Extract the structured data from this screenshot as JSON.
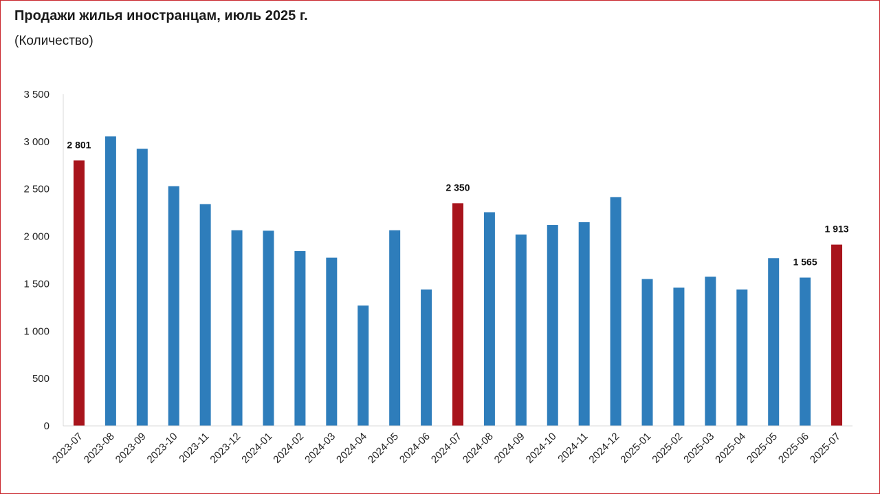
{
  "header": {
    "title": "Продажи жилья иностранцам, июль 2025 г.",
    "subtitle": "(Количество)"
  },
  "colors": {
    "bar": "#2e7dbb",
    "highlight": "#a8141c",
    "frame": "#c9252c",
    "axis": "#d9d9d9"
  },
  "chart_data": {
    "type": "bar",
    "title": "Продажи жилья иностранцам, июль 2025 г.",
    "subtitle": "(Количество)",
    "xlabel": "",
    "ylabel": "",
    "ylim": [
      0,
      3500
    ],
    "yticks": [
      0,
      500,
      1000,
      1500,
      2000,
      2500,
      3000,
      3500
    ],
    "ytick_labels": [
      "0",
      "500",
      "1 000",
      "1 500",
      "2 000",
      "2 500",
      "3 000",
      "3 500"
    ],
    "grid": false,
    "legend": "none",
    "categories": [
      "2023-07",
      "2023-08",
      "2023-09",
      "2023-10",
      "2023-11",
      "2023-12",
      "2024-01",
      "2024-02",
      "2024-03",
      "2024-04",
      "2024-05",
      "2024-06",
      "2024-07",
      "2024-08",
      "2024-09",
      "2024-10",
      "2024-11",
      "2024-12",
      "2025-01",
      "2025-02",
      "2025-03",
      "2025-04",
      "2025-05",
      "2025-06",
      "2025-07"
    ],
    "values": [
      2801,
      3055,
      2925,
      2530,
      2340,
      2065,
      2060,
      1845,
      1775,
      1270,
      2065,
      1440,
      2350,
      2255,
      2020,
      2120,
      2150,
      2415,
      1550,
      1460,
      1575,
      1440,
      1770,
      1565,
      1913
    ],
    "highlighted": [
      "2023-07",
      "2024-07",
      "2025-07"
    ],
    "data_labels": [
      {
        "category": "2023-07",
        "text": "2 801"
      },
      {
        "category": "2024-07",
        "text": "2 350"
      },
      {
        "category": "2025-06",
        "text": "1 565"
      },
      {
        "category": "2025-07",
        "text": "1 913"
      }
    ]
  }
}
